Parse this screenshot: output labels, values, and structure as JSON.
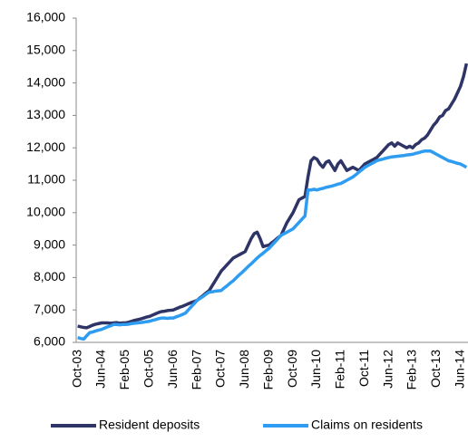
{
  "chart_data": {
    "type": "line",
    "categories": [
      "Oct-03",
      null,
      null,
      null,
      null,
      null,
      null,
      null,
      "Jun-04",
      null,
      null,
      null,
      null,
      null,
      null,
      null,
      "Feb-05",
      null,
      null,
      null,
      null,
      null,
      null,
      null,
      "Oct-05",
      null,
      null,
      null,
      null,
      null,
      null,
      null,
      "Jun-06",
      null,
      null,
      null,
      null,
      null,
      null,
      null,
      "Feb-07",
      null,
      null,
      null,
      null,
      null,
      null,
      null,
      "Oct-07",
      null,
      null,
      null,
      null,
      null,
      null,
      null,
      "Jun-08",
      null,
      null,
      null,
      null,
      null,
      null,
      null,
      "Feb-09",
      null,
      null,
      null,
      null,
      null,
      null,
      null,
      "Oct-09",
      null,
      null,
      null,
      null,
      null,
      null,
      null,
      "Jun-10",
      null,
      null,
      null,
      null,
      null,
      null,
      null,
      "Feb-11",
      null,
      null,
      null,
      null,
      null,
      null,
      null,
      "Oct-11",
      null,
      null,
      null,
      null,
      null,
      null,
      null,
      "Jun-12",
      null,
      null,
      null,
      null,
      null,
      null,
      null,
      "Feb-13",
      null,
      null,
      null,
      null,
      null,
      null,
      null,
      "Oct-13",
      null,
      null,
      null,
      null,
      null,
      null,
      null,
      "Jun-14",
      null,
      null
    ],
    "series": [
      {
        "name": "Resident deposits",
        "color": "#2e3466",
        "values": [
          6500,
          6480,
          6460,
          6450,
          6490,
          6530,
          6560,
          6580,
          6600,
          6600,
          6600,
          6590,
          6600,
          6610,
          6590,
          6600,
          6600,
          6620,
          6650,
          6680,
          6700,
          6720,
          6750,
          6780,
          6800,
          6840,
          6880,
          6920,
          6950,
          6960,
          6980,
          6990,
          7000,
          7040,
          7080,
          7110,
          7150,
          7190,
          7230,
          7260,
          7300,
          7380,
          7450,
          7530,
          7600,
          7750,
          7900,
          8050,
          8200,
          8300,
          8400,
          8500,
          8600,
          8650,
          8700,
          8750,
          8800,
          9000,
          9200,
          9350,
          9400,
          9200,
          8950,
          8980,
          9000,
          9080,
          9150,
          9230,
          9300,
          9500,
          9700,
          9850,
          10000,
          10200,
          10400,
          10450,
          10500,
          11100,
          11600,
          11700,
          11650,
          11500,
          11400,
          11550,
          11600,
          11450,
          11300,
          11500,
          11600,
          11450,
          11300,
          11350,
          11400,
          11350,
          11300,
          11400,
          11500,
          11550,
          11600,
          11650,
          11700,
          11800,
          11900,
          12000,
          12100,
          12150,
          12050,
          12150,
          12100,
          12050,
          12000,
          12050,
          12000,
          12100,
          12150,
          12250,
          12300,
          12400,
          12550,
          12700,
          12800,
          12950,
          13000,
          13150,
          13200,
          13350,
          13500,
          13700,
          13900,
          14200,
          14600
        ]
      },
      {
        "name": "Claims on residents",
        "color": "#2e9cf0",
        "values": [
          6150,
          6120,
          6100,
          6200,
          6300,
          6320,
          6350,
          6380,
          6400,
          6440,
          6480,
          6510,
          6550,
          6550,
          6540,
          6550,
          6550,
          6560,
          6580,
          6590,
          6600,
          6610,
          6620,
          6640,
          6650,
          6680,
          6700,
          6730,
          6750,
          6750,
          6740,
          6750,
          6750,
          6790,
          6820,
          6860,
          6900,
          7000,
          7100,
          7200,
          7300,
          7360,
          7420,
          7490,
          7550,
          7560,
          7580,
          7590,
          7600,
          7680,
          7750,
          7830,
          7900,
          7990,
          8080,
          8160,
          8250,
          8340,
          8420,
          8510,
          8600,
          8680,
          8750,
          8830,
          8900,
          9000,
          9100,
          9200,
          9300,
          9350,
          9400,
          9450,
          9500,
          9600,
          9700,
          9800,
          9900,
          10700,
          10700,
          10720,
          10700,
          10730,
          10750,
          10780,
          10800,
          10820,
          10850,
          10880,
          10900,
          10950,
          11000,
          11050,
          11100,
          11170,
          11250,
          11320,
          11400,
          11450,
          11500,
          11550,
          11600,
          11630,
          11650,
          11680,
          11700,
          11720,
          11730,
          11740,
          11750,
          11760,
          11780,
          11790,
          11800,
          11830,
          11850,
          11880,
          11900,
          11900,
          11900,
          11850,
          11800,
          11750,
          11700,
          11650,
          11600,
          11580,
          11550,
          11520,
          11500,
          11450,
          11400
        ]
      }
    ],
    "ylim": [
      6000,
      16000
    ],
    "yticks": [
      {
        "value": 6000,
        "label": "6,000"
      },
      {
        "value": 7000,
        "label": "7,000"
      },
      {
        "value": 8000,
        "label": "8,000"
      },
      {
        "value": 9000,
        "label": "9,000"
      },
      {
        "value": 10000,
        "label": "10,000"
      },
      {
        "value": 11000,
        "label": "11,000"
      },
      {
        "value": 12000,
        "label": "12,000"
      },
      {
        "value": 13000,
        "label": "13,000"
      },
      {
        "value": 14000,
        "label": "14,000"
      },
      {
        "value": 15000,
        "label": "15,000"
      },
      {
        "value": 16000,
        "label": "16,000"
      }
    ],
    "grid": false,
    "legend": "bottom"
  }
}
